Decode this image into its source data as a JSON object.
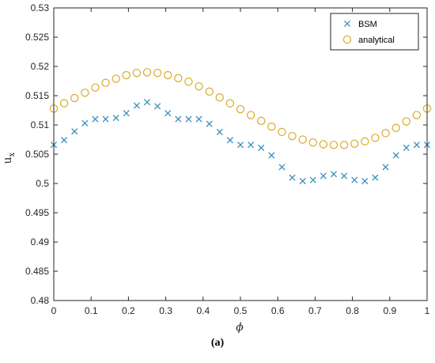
{
  "caption": "(a)",
  "chart_data": {
    "type": "scatter",
    "xlabel": "ϕ",
    "ylabel": "u_x",
    "ylabel_main": "u",
    "ylabel_sub": "x",
    "xlim": [
      0,
      1
    ],
    "ylim": [
      0.48,
      0.53
    ],
    "xticks": [
      "0",
      "0.1",
      "0.2",
      "0.3",
      "0.4",
      "0.5",
      "0.6",
      "0.7",
      "0.8",
      "0.9",
      "1"
    ],
    "yticks": [
      "0.48",
      "0.485",
      "0.49",
      "0.495",
      "0.5",
      "0.505",
      "0.51",
      "0.515",
      "0.52",
      "0.525",
      "0.53"
    ],
    "grid": false,
    "legend_position": "top-right",
    "x": [
      0,
      0.0278,
      0.0556,
      0.0833,
      0.1111,
      0.1389,
      0.1667,
      0.1944,
      0.2222,
      0.25,
      0.2778,
      0.3056,
      0.3333,
      0.3611,
      0.3889,
      0.4167,
      0.4444,
      0.4722,
      0.5,
      0.5278,
      0.5556,
      0.5833,
      0.6111,
      0.6389,
      0.6667,
      0.6944,
      0.7222,
      0.75,
      0.7778,
      0.8056,
      0.8333,
      0.8611,
      0.8889,
      0.9167,
      0.9444,
      0.9722,
      1
    ],
    "series": [
      {
        "name": "BSM",
        "marker": "x",
        "color": "#3a8fbf",
        "values": [
          0.5066,
          0.5074,
          0.5089,
          0.5103,
          0.511,
          0.511,
          0.5112,
          0.512,
          0.5133,
          0.5139,
          0.5132,
          0.512,
          0.511,
          0.511,
          0.511,
          0.5102,
          0.5088,
          0.5074,
          0.5066,
          0.5066,
          0.5061,
          0.5048,
          0.5028,
          0.501,
          0.5004,
          0.5006,
          0.5013,
          0.5016,
          0.5013,
          0.5006,
          0.5004,
          0.501,
          0.5028,
          0.5048,
          0.5061,
          0.5066,
          0.5066
        ]
      },
      {
        "name": "analytical",
        "marker": "o",
        "color": "#d8a92b",
        "values": [
          0.5128,
          0.5137,
          0.5146,
          0.5155,
          0.5164,
          0.5172,
          0.5179,
          0.5185,
          0.5189,
          0.519,
          0.5189,
          0.5185,
          0.518,
          0.5174,
          0.5166,
          0.5157,
          0.5147,
          0.5137,
          0.5127,
          0.5117,
          0.5107,
          0.5097,
          0.5088,
          0.5081,
          0.5075,
          0.507,
          0.5067,
          0.5066,
          0.5066,
          0.5068,
          0.5072,
          0.5078,
          0.5086,
          0.5095,
          0.5106,
          0.5117,
          0.5128
        ]
      }
    ]
  }
}
